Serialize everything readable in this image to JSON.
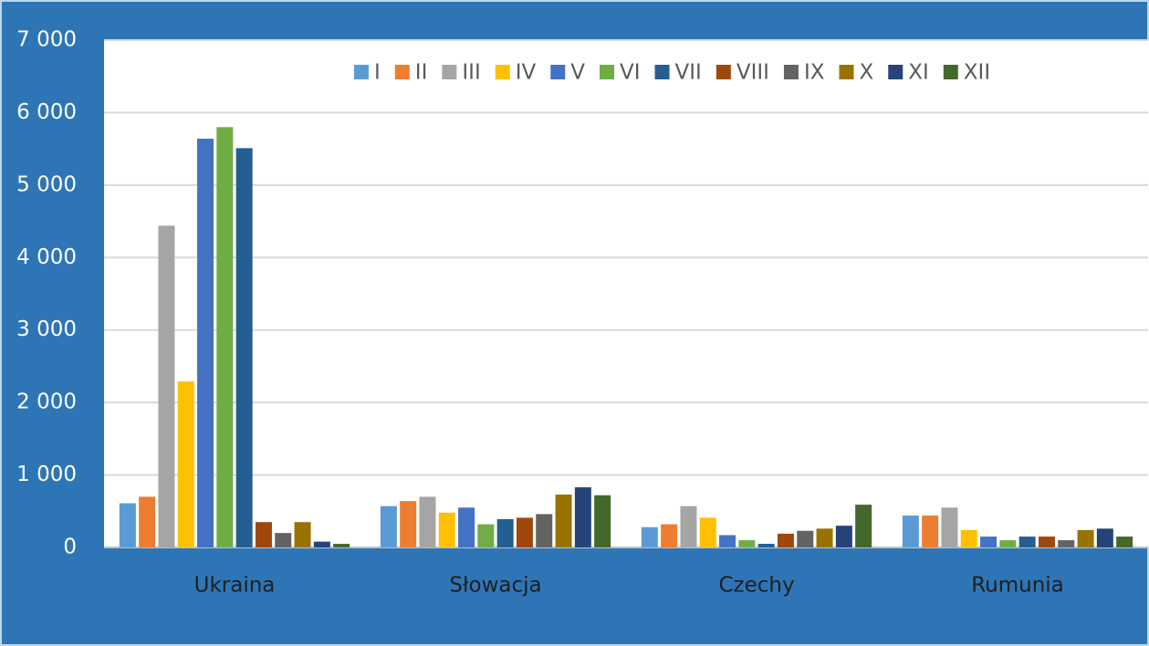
{
  "chart_data": {
    "type": "bar",
    "categories": [
      "Ukraina",
      "Słowacja",
      "Czechy",
      "Rumunia"
    ],
    "series": [
      {
        "name": "I",
        "color": "#5B9BD5",
        "values": [
          610,
          570,
          280,
          440
        ]
      },
      {
        "name": "II",
        "color": "#ED7D31",
        "values": [
          700,
          640,
          320,
          440
        ]
      },
      {
        "name": "III",
        "color": "#A5A5A5",
        "values": [
          4440,
          700,
          570,
          550
        ]
      },
      {
        "name": "IV",
        "color": "#FFC000",
        "values": [
          2290,
          480,
          410,
          240
        ]
      },
      {
        "name": "V",
        "color": "#4472C4",
        "values": [
          5640,
          550,
          170,
          150
        ]
      },
      {
        "name": "VI",
        "color": "#70AD47",
        "values": [
          5800,
          320,
          100,
          100
        ]
      },
      {
        "name": "VII",
        "color": "#255E91",
        "values": [
          5510,
          390,
          50,
          150
        ]
      },
      {
        "name": "VIII",
        "color": "#9E480E",
        "values": [
          350,
          410,
          190,
          150
        ]
      },
      {
        "name": "IX",
        "color": "#636363",
        "values": [
          200,
          460,
          230,
          100
        ]
      },
      {
        "name": "X",
        "color": "#997300",
        "values": [
          350,
          730,
          260,
          240
        ]
      },
      {
        "name": "XI",
        "color": "#264478",
        "values": [
          80,
          830,
          300,
          260
        ]
      },
      {
        "name": "XII",
        "color": "#43682B",
        "values": [
          50,
          720,
          590,
          150
        ]
      }
    ],
    "ylim": [
      0,
      7000
    ],
    "yticks": [
      0,
      {
        "value": 1000,
        "label": "1 000"
      },
      {
        "value": 2000,
        "label": "2 000"
      },
      {
        "value": 3000,
        "label": "3 000"
      },
      {
        "value": 4000,
        "label": "4 000"
      },
      {
        "value": 5000,
        "label": "5 000"
      },
      {
        "value": 6000,
        "label": "6 000"
      },
      {
        "value": 7000,
        "label": "7 000"
      }
    ],
    "grid": true,
    "legend": "top"
  }
}
